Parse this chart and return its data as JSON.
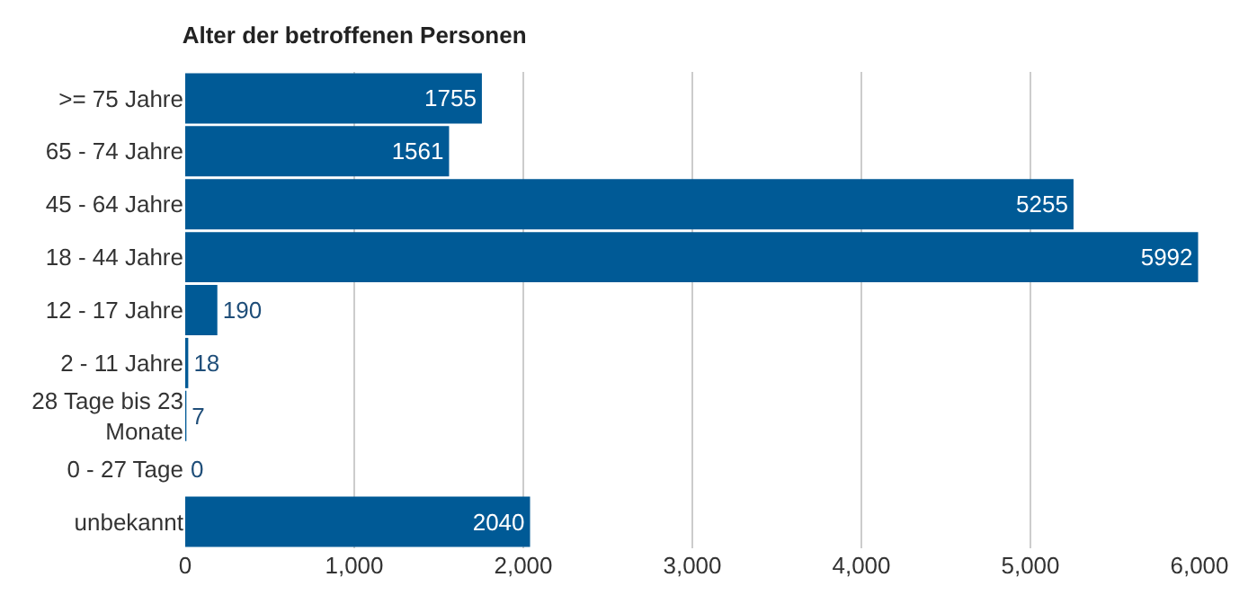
{
  "chart_data": {
    "type": "bar",
    "orientation": "horizontal",
    "title": "Alter der betroffenen Personen",
    "categories": [
      ">= 75 Jahre",
      "65 - 74 Jahre",
      "45 - 64 Jahre",
      "18 - 44 Jahre",
      "12 - 17 Jahre",
      "2 - 11 Jahre",
      "28 Tage bis 23 Monate",
      "0 - 27 Tage",
      "unbekannt"
    ],
    "values": [
      1755,
      1561,
      5255,
      5992,
      190,
      18,
      7,
      0,
      2040
    ],
    "color": "#005a96",
    "xlim": [
      0,
      6000
    ],
    "xticks": [
      0,
      {
        "value": 1000,
        "label": "1,000"
      },
      {
        "value": 2000,
        "label": "2,000"
      },
      {
        "value": 3000,
        "label": "3,000"
      },
      {
        "value": 4000,
        "label": "4,000"
      },
      {
        "value": 5000,
        "label": "5,000"
      },
      {
        "value": 6000,
        "label": "6,000"
      }
    ],
    "grid": "x",
    "data_labels": true
  }
}
